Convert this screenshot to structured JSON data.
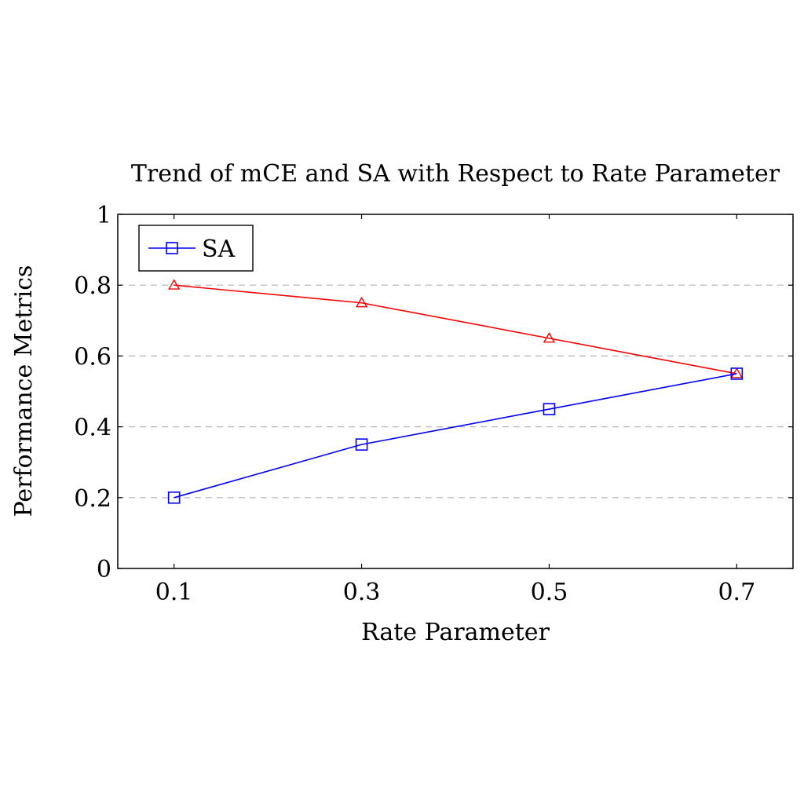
{
  "chart_data": {
    "type": "line",
    "title": "Trend of mCE and SA with Respect to Rate Parameter",
    "xlabel": "Rate Parameter",
    "ylabel": "Performance Metrics",
    "x": [
      0.1,
      0.3,
      0.5,
      0.7
    ],
    "x_tick_labels": [
      "0.1",
      "0.3",
      "0.5",
      "0.7"
    ],
    "xlim": [
      0.04,
      0.76
    ],
    "ylim": [
      0,
      1
    ],
    "y_ticks": [
      0,
      0.2,
      0.4,
      0.6,
      0.8,
      1
    ],
    "y_tick_labels": [
      "0",
      "0.2",
      "0.4",
      "0.6",
      "0.8",
      "1"
    ],
    "grid": "horizontal-dashed",
    "legend_position": "top-left",
    "series": [
      {
        "name": "",
        "color": "#ff0000",
        "marker": "triangle",
        "values": [
          0.8,
          0.75,
          0.65,
          0.55
        ],
        "in_legend": false
      },
      {
        "name": "SA",
        "color": "#0000ff",
        "marker": "square",
        "values": [
          0.2,
          0.35,
          0.45,
          0.55
        ],
        "in_legend": true
      }
    ]
  }
}
